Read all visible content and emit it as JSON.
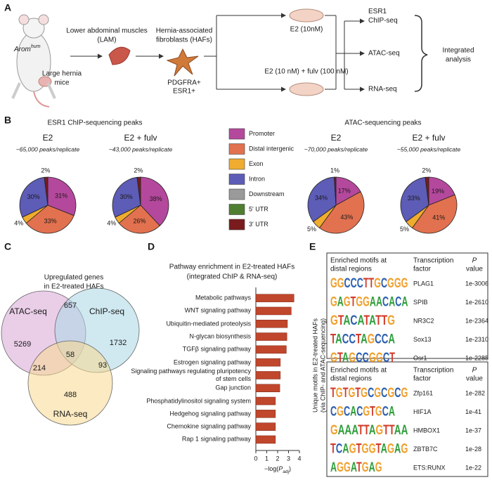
{
  "panel_a": {
    "letter": "A",
    "mouse_label": {
      "base": "Arom",
      "sup": "hum"
    },
    "mouse_caption": [
      "Large hernia",
      "mice"
    ],
    "muscle_label": [
      "Lower abdominal muscles",
      "(LAM)"
    ],
    "cell_label": [
      "Hernia-associated",
      "fibroblasts (HAFs)"
    ],
    "markers": [
      "PDGFRA+",
      "ESR1+"
    ],
    "treatment_1": "E2 (10nM)",
    "treatment_2": "E2 (10 nM) + fulv (100 nM)",
    "assays": [
      [
        "ESR1",
        "ChIP-seq"
      ],
      [
        "ATAC-seq"
      ],
      [
        "RNA-seq"
      ]
    ],
    "integration": [
      "Integrated",
      "analysis"
    ]
  },
  "panel_b": {
    "letter": "B",
    "chip_title": "ESR1 ChIP-sequencing peaks",
    "atac_title": "ATAC-sequencing peaks",
    "categories": [
      "Promoter",
      "Distal intergenic",
      "Exon",
      "Intron",
      "Downstream",
      "5′ UTR",
      "3′ UTR"
    ],
    "colors": [
      "#b4489c",
      "#e2714f",
      "#efac2e",
      "#5d5cb6",
      "#9a9a9a",
      "#4f7e30",
      "#7a1b1d"
    ]
  },
  "chart_data": [
    {
      "type": "pie",
      "title": "E2",
      "subtitle": "~65,000 peaks/replicate",
      "title_color": "#d9552c",
      "values": [
        31,
        33,
        4,
        30,
        0,
        0,
        2
      ],
      "value_labels": [
        "31%",
        "33%",
        "4%",
        "30%",
        null,
        null,
        "2%"
      ]
    },
    {
      "type": "pie",
      "title": "E2 + fulv",
      "subtitle": "~43,000 peaks/replicate",
      "title_color": "#4b59b0",
      "values": [
        38,
        26,
        4,
        30,
        0,
        0,
        2
      ],
      "value_labels": [
        "38%",
        "26%",
        "4%",
        "30%",
        null,
        null,
        "2%"
      ]
    },
    {
      "type": "pie",
      "title": "E2",
      "subtitle": "~70,000 peaks/replicate",
      "title_color": "#d9552c",
      "values": [
        17,
        43,
        5,
        34,
        0,
        0,
        1
      ],
      "value_labels": [
        "17%",
        "43%",
        "5%",
        "34%",
        null,
        null,
        "1%"
      ]
    },
    {
      "type": "pie",
      "title": "E2 + fulv",
      "subtitle": "~55,000 peaks/replicate",
      "title_color": "#4b59b0",
      "values": [
        19,
        41,
        5,
        33,
        0,
        0,
        2
      ],
      "value_labels": [
        "19%",
        "41%",
        "5%",
        "33%",
        null,
        null,
        "2%"
      ]
    },
    {
      "type": "bar",
      "orientation": "horizontal",
      "title": "Pathway enrichment in E2-treated HAFs",
      "subtitle": "(integrated ChIP & RNA-seq)",
      "categories": [
        "Metabolic pathways",
        "WNT signaling pathway",
        "Ubiquitin-mediated proteolysis",
        "N-glycan biosynthesis",
        "TGFβ signaling pathway",
        "Estrogen signaling pathway",
        "Signaling pathways regulating pluripotency of stem cells",
        "Gap junction",
        "Phosphatidylinositol signaling system",
        "Hedgehog signaling pathway",
        "Chemokine signaling pathway",
        "Rap 1 signaling pathway"
      ],
      "values": [
        3.5,
        3.25,
        2.9,
        2.85,
        2.8,
        2.25,
        2.25,
        2.2,
        1.8,
        1.8,
        1.8,
        1.8
      ],
      "color": "#c0462c",
      "xlim": [
        0,
        4
      ],
      "xticks": [
        0,
        1,
        2,
        3,
        4
      ],
      "xlabel": {
        "pre": "−log(",
        "italic": "P",
        "sub": "adj",
        "post": ")"
      }
    }
  ],
  "panel_c": {
    "letter": "C",
    "title": [
      "Upregulated genes",
      "in E2-treated HAFs"
    ],
    "sets": [
      "ATAC-seq",
      "ChIP-seq",
      "RNA-seq"
    ],
    "counts": [
      5269,
      657,
      1732,
      214,
      58,
      93,
      488
    ]
  },
  "panel_d": {
    "letter": "D"
  },
  "panel_e": {
    "letter": "E",
    "side_label": [
      "Unique motifs in E2-treated HAFs",
      "(via ChIP- and ATAC-sequencing)"
    ],
    "tables": [
      {
        "header": {
          "motif": [
            "Enriched motifs at",
            "distal regions"
          ],
          "factor": [
            "Transcription",
            "factor"
          ],
          "p": [
            "P",
            "value"
          ]
        },
        "rows": [
          {
            "motif": "GGCCCTTGCGGG",
            "factor": "PLAG1",
            "p": "1e-3006"
          },
          {
            "motif": "GAGTGGAACACA",
            "factor": "SPIB",
            "p": "1e-2610"
          },
          {
            "motif": "GTACATATTG",
            "factor": "NR3C2",
            "p": "1e-2364"
          },
          {
            "motif": "TACCTAGCCA",
            "factor": "Sox13",
            "p": "1e-2310"
          },
          {
            "motif": "GTAGCCGGCT",
            "factor": "Osr1",
            "p": "1e-2285"
          }
        ]
      },
      {
        "header": {
          "motif": [
            "Enriched motifs at",
            "distal regions"
          ],
          "factor": [
            "Transcription",
            "factor"
          ],
          "p": [
            "P",
            "value"
          ]
        },
        "rows": [
          {
            "motif": "TGTGTGCGCGCG",
            "factor": "Zfp161",
            "p": "1e-282"
          },
          {
            "motif": "CGCACGTGCA",
            "factor": "HIF1A",
            "p": "1e-41"
          },
          {
            "motif": "GAAATTAGTTAA",
            "factor": "HMBOX1",
            "p": "1e-37"
          },
          {
            "motif": "TCAGTGGTAGAG",
            "factor": "ZBTB7C",
            "p": "1e-28"
          },
          {
            "motif": "AGGATGAG",
            "factor": "ETS:RUNX",
            "p": "1e-22"
          }
        ]
      }
    ]
  }
}
